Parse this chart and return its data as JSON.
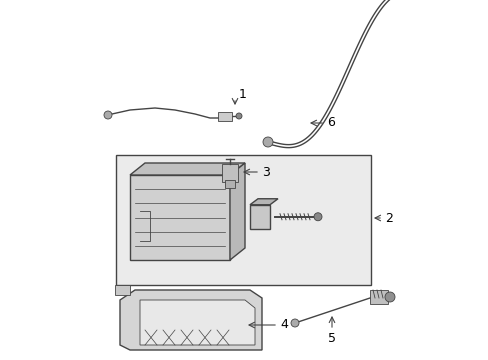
{
  "bg_color": "#ffffff",
  "lc": "#444444",
  "lc2": "#888888",
  "figsize": [
    4.89,
    3.6
  ],
  "dpi": 100,
  "box_fill": "#ebebeb",
  "part_fill": "#d8d8d8",
  "part_fill2": "#cccccc"
}
